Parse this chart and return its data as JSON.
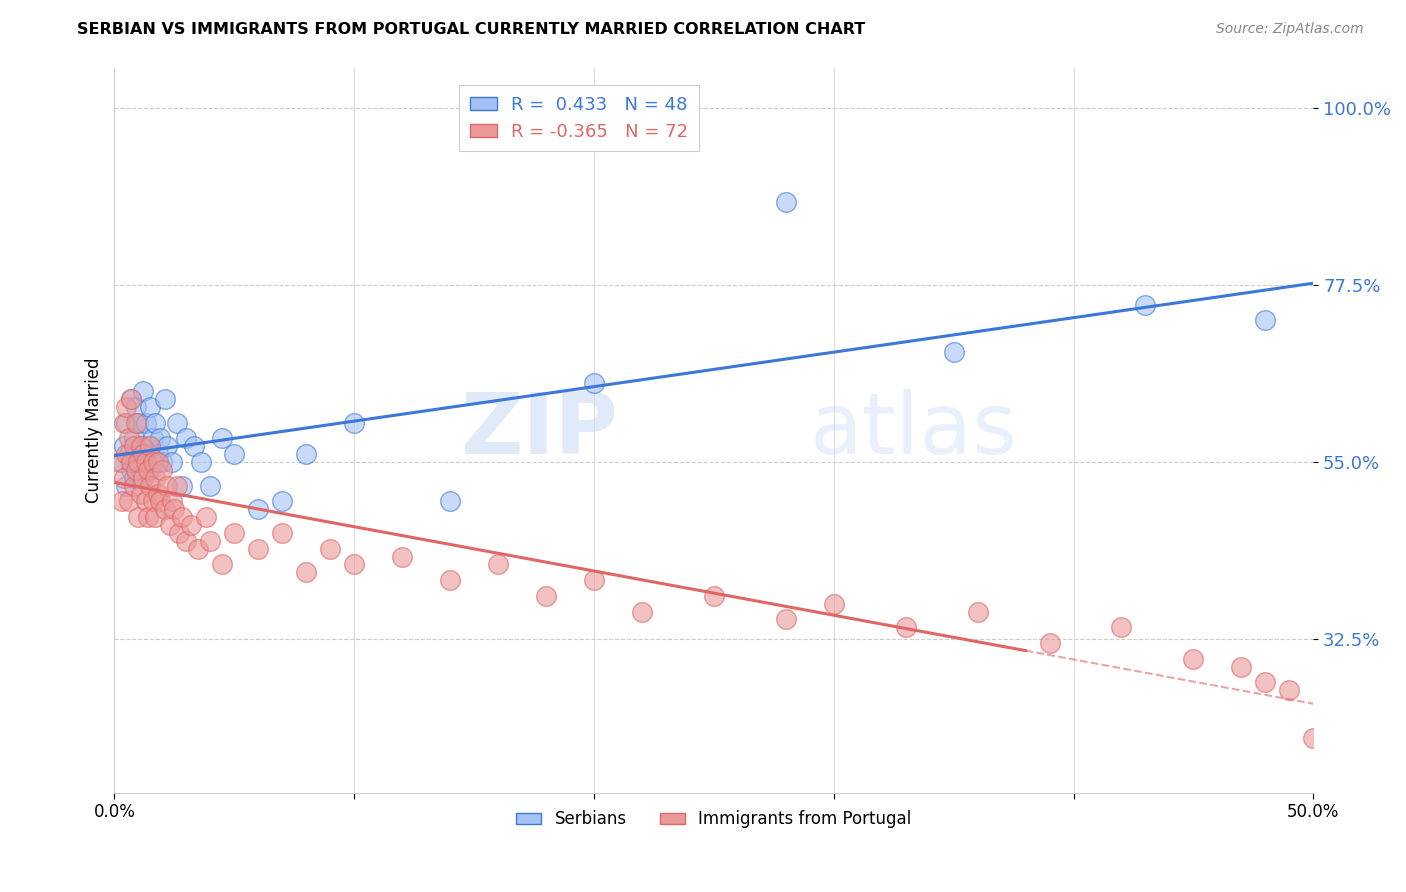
{
  "title": "SERBIAN VS IMMIGRANTS FROM PORTUGAL CURRENTLY MARRIED CORRELATION CHART",
  "source": "Source: ZipAtlas.com",
  "ylabel": "Currently Married",
  "ytick_labels": [
    "100.0%",
    "77.5%",
    "55.0%",
    "32.5%"
  ],
  "ytick_values": [
    1.0,
    0.775,
    0.55,
    0.325
  ],
  "xmin": 0.0,
  "xmax": 0.5,
  "ymin": 0.13,
  "ymax": 1.05,
  "serbian_R": 0.433,
  "serbian_N": 48,
  "portugal_R": -0.365,
  "portugal_N": 72,
  "legend_blue_label": "Serbians",
  "legend_pink_label": "Immigrants from Portugal",
  "blue_color": "#a4c2f4",
  "pink_color": "#ea9999",
  "blue_line_color": "#3c78d8",
  "pink_line_color": "#e06666",
  "watermark_zip": "ZIP",
  "watermark_atlas": "atlas",
  "serbian_x": [
    0.003,
    0.004,
    0.005,
    0.005,
    0.006,
    0.007,
    0.007,
    0.008,
    0.008,
    0.009,
    0.009,
    0.01,
    0.01,
    0.011,
    0.011,
    0.012,
    0.012,
    0.013,
    0.013,
    0.014,
    0.015,
    0.015,
    0.016,
    0.017,
    0.018,
    0.019,
    0.02,
    0.021,
    0.022,
    0.024,
    0.026,
    0.028,
    0.03,
    0.033,
    0.036,
    0.04,
    0.045,
    0.05,
    0.06,
    0.07,
    0.08,
    0.1,
    0.14,
    0.2,
    0.28,
    0.35,
    0.43,
    0.48
  ],
  "serbian_y": [
    0.55,
    0.57,
    0.52,
    0.6,
    0.56,
    0.54,
    0.63,
    0.58,
    0.53,
    0.56,
    0.62,
    0.55,
    0.6,
    0.57,
    0.53,
    0.56,
    0.64,
    0.55,
    0.6,
    0.57,
    0.62,
    0.54,
    0.58,
    0.6,
    0.56,
    0.58,
    0.55,
    0.63,
    0.57,
    0.55,
    0.6,
    0.52,
    0.58,
    0.57,
    0.55,
    0.52,
    0.58,
    0.56,
    0.49,
    0.5,
    0.56,
    0.6,
    0.5,
    0.65,
    0.88,
    0.69,
    0.75,
    0.73
  ],
  "portugal_x": [
    0.002,
    0.003,
    0.004,
    0.004,
    0.005,
    0.005,
    0.006,
    0.006,
    0.007,
    0.007,
    0.008,
    0.008,
    0.009,
    0.009,
    0.01,
    0.01,
    0.011,
    0.011,
    0.012,
    0.012,
    0.013,
    0.013,
    0.014,
    0.014,
    0.015,
    0.015,
    0.016,
    0.016,
    0.017,
    0.017,
    0.018,
    0.018,
    0.019,
    0.02,
    0.021,
    0.022,
    0.023,
    0.024,
    0.025,
    0.026,
    0.027,
    0.028,
    0.03,
    0.032,
    0.035,
    0.038,
    0.04,
    0.045,
    0.05,
    0.06,
    0.07,
    0.08,
    0.09,
    0.1,
    0.12,
    0.14,
    0.16,
    0.18,
    0.2,
    0.22,
    0.25,
    0.28,
    0.3,
    0.33,
    0.36,
    0.39,
    0.42,
    0.45,
    0.47,
    0.48,
    0.49,
    0.5
  ],
  "portugal_y": [
    0.55,
    0.5,
    0.6,
    0.53,
    0.62,
    0.56,
    0.58,
    0.5,
    0.63,
    0.55,
    0.57,
    0.52,
    0.6,
    0.54,
    0.55,
    0.48,
    0.57,
    0.51,
    0.56,
    0.53,
    0.55,
    0.5,
    0.54,
    0.48,
    0.52,
    0.57,
    0.5,
    0.55,
    0.48,
    0.53,
    0.51,
    0.55,
    0.5,
    0.54,
    0.49,
    0.52,
    0.47,
    0.5,
    0.49,
    0.52,
    0.46,
    0.48,
    0.45,
    0.47,
    0.44,
    0.48,
    0.45,
    0.42,
    0.46,
    0.44,
    0.46,
    0.41,
    0.44,
    0.42,
    0.43,
    0.4,
    0.42,
    0.38,
    0.4,
    0.36,
    0.38,
    0.35,
    0.37,
    0.34,
    0.36,
    0.32,
    0.34,
    0.3,
    0.29,
    0.27,
    0.26,
    0.2
  ],
  "solid_cutoff_p": 0.38
}
